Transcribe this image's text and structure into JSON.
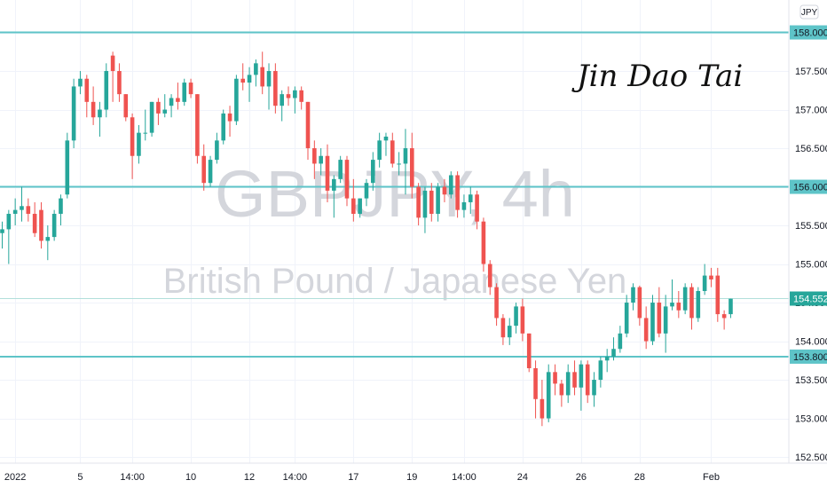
{
  "chart_data": {
    "type": "candlestick",
    "symbol": "GBPJPY, 4h",
    "description": "British Pound / Japanese Yen",
    "currency": "JPY",
    "signature": "Jin Dao Tai",
    "y_ticks": [
      152.5,
      153.0,
      153.5,
      154.0,
      154.5,
      155.0,
      155.5,
      156.0,
      156.5,
      157.0,
      157.5,
      158.0
    ],
    "ylim": [
      152.42,
      158.42
    ],
    "x_labels": [
      {
        "label": "2022",
        "bar": 2
      },
      {
        "label": "5",
        "bar": 12
      },
      {
        "label": "14:00",
        "bar": 20
      },
      {
        "label": "10",
        "bar": 29
      },
      {
        "label": "12",
        "bar": 38
      },
      {
        "label": "14:00",
        "bar": 45
      },
      {
        "label": "17",
        "bar": 54
      },
      {
        "label": "19",
        "bar": 63
      },
      {
        "label": "14:00",
        "bar": 71
      },
      {
        "label": "24",
        "bar": 80
      },
      {
        "label": "26",
        "bar": 89
      },
      {
        "label": "28",
        "bar": 98
      },
      {
        "label": "Feb",
        "bar": 109
      }
    ],
    "levels": [
      {
        "value": 158.0,
        "label": "158.000"
      },
      {
        "value": 156.0,
        "label": "156.000"
      },
      {
        "value": 153.8,
        "label": "153.800"
      }
    ],
    "last_price": {
      "value": 154.552,
      "label": "154.552"
    },
    "colors": {
      "up": "#26a69a",
      "down": "#ef5350",
      "level": "#5ec4c8",
      "last": "#26a69a"
    },
    "candles": [
      [
        155.4,
        155.55,
        155.2,
        155.45
      ],
      [
        155.45,
        155.7,
        155.0,
        155.65
      ],
      [
        155.65,
        155.85,
        155.5,
        155.7
      ],
      [
        155.7,
        156.0,
        155.55,
        155.75
      ],
      [
        155.75,
        155.85,
        155.55,
        155.65
      ],
      [
        155.65,
        155.8,
        155.35,
        155.4
      ],
      [
        155.7,
        155.8,
        155.2,
        155.3
      ],
      [
        155.3,
        155.5,
        155.05,
        155.35
      ],
      [
        155.35,
        155.7,
        155.3,
        155.65
      ],
      [
        155.65,
        155.9,
        155.5,
        155.85
      ],
      [
        155.9,
        156.7,
        155.85,
        156.6
      ],
      [
        156.6,
        157.4,
        156.5,
        157.3
      ],
      [
        157.3,
        157.5,
        157.2,
        157.4
      ],
      [
        157.4,
        157.45,
        156.9,
        157.1
      ],
      [
        157.1,
        157.3,
        156.8,
        156.9
      ],
      [
        156.9,
        157.1,
        156.65,
        157.0
      ],
      [
        157.0,
        157.6,
        156.9,
        157.5
      ],
      [
        157.7,
        157.75,
        157.1,
        157.5
      ],
      [
        157.5,
        157.6,
        157.1,
        157.2
      ],
      [
        157.2,
        157.2,
        156.85,
        156.9
      ],
      [
        156.9,
        156.95,
        156.1,
        156.4
      ],
      [
        156.4,
        156.8,
        156.3,
        156.7
      ],
      [
        156.7,
        157.0,
        156.6,
        156.7
      ],
      [
        156.7,
        157.1,
        156.65,
        157.1
      ],
      [
        157.1,
        157.15,
        156.8,
        156.95
      ],
      [
        156.95,
        157.2,
        156.9,
        157.0
      ],
      [
        157.05,
        157.2,
        156.9,
        157.15
      ],
      [
        157.15,
        157.35,
        157.0,
        157.1
      ],
      [
        157.1,
        157.4,
        157.05,
        157.35
      ],
      [
        157.35,
        157.4,
        157.15,
        157.2
      ],
      [
        157.2,
        157.2,
        156.3,
        156.4
      ],
      [
        156.4,
        156.55,
        155.95,
        156.05
      ],
      [
        156.05,
        156.4,
        156.0,
        156.35
      ],
      [
        156.35,
        156.7,
        156.3,
        156.6
      ],
      [
        156.6,
        157.0,
        156.55,
        156.95
      ],
      [
        156.95,
        157.05,
        156.65,
        156.85
      ],
      [
        156.85,
        157.45,
        156.8,
        157.4
      ],
      [
        157.4,
        157.6,
        157.25,
        157.35
      ],
      [
        157.35,
        157.55,
        157.1,
        157.45
      ],
      [
        157.45,
        157.65,
        157.3,
        157.6
      ],
      [
        157.55,
        157.75,
        157.2,
        157.3
      ],
      [
        157.3,
        157.6,
        157.0,
        157.5
      ],
      [
        157.5,
        157.6,
        156.95,
        157.05
      ],
      [
        157.05,
        157.25,
        156.85,
        157.2
      ],
      [
        157.2,
        157.3,
        157.05,
        157.15
      ],
      [
        157.15,
        157.3,
        156.95,
        157.25
      ],
      [
        157.25,
        157.3,
        157.0,
        157.1
      ],
      [
        157.1,
        157.1,
        156.35,
        156.5
      ],
      [
        156.5,
        156.6,
        156.1,
        156.3
      ],
      [
        156.3,
        156.5,
        156.15,
        156.4
      ],
      [
        156.4,
        156.55,
        155.8,
        155.95
      ],
      [
        155.95,
        156.15,
        155.6,
        156.1
      ],
      [
        156.1,
        156.4,
        156.05,
        156.35
      ],
      [
        156.35,
        156.4,
        155.75,
        155.85
      ],
      [
        155.85,
        156.1,
        155.55,
        155.65
      ],
      [
        155.65,
        155.85,
        155.6,
        155.85
      ],
      [
        155.85,
        156.1,
        155.75,
        156.05
      ],
      [
        156.05,
        156.45,
        155.95,
        156.35
      ],
      [
        156.35,
        156.7,
        156.25,
        156.6
      ],
      [
        156.6,
        156.7,
        156.4,
        156.65
      ],
      [
        156.6,
        156.7,
        156.25,
        156.3
      ],
      [
        156.3,
        156.45,
        156.15,
        156.3
      ],
      [
        156.3,
        156.75,
        155.9,
        156.5
      ],
      [
        156.5,
        156.7,
        155.85,
        156.0
      ],
      [
        156.0,
        156.05,
        155.5,
        155.6
      ],
      [
        155.6,
        156.0,
        155.4,
        155.95
      ],
      [
        155.95,
        156.05,
        155.55,
        155.65
      ],
      [
        155.65,
        156.05,
        155.55,
        156.0
      ],
      [
        156.0,
        156.1,
        155.8,
        155.9
      ],
      [
        155.9,
        156.2,
        155.85,
        156.15
      ],
      [
        156.15,
        156.2,
        155.6,
        155.7
      ],
      [
        155.7,
        155.9,
        155.6,
        155.8
      ],
      [
        155.8,
        156.0,
        155.65,
        155.9
      ],
      [
        155.9,
        155.95,
        155.45,
        155.55
      ],
      [
        155.55,
        155.6,
        154.9,
        155.0
      ],
      [
        155.0,
        155.05,
        154.6,
        154.7
      ],
      [
        154.7,
        154.75,
        154.2,
        154.3
      ],
      [
        154.3,
        154.35,
        153.95,
        154.05
      ],
      [
        154.05,
        154.3,
        153.95,
        154.2
      ],
      [
        154.2,
        154.5,
        154.1,
        154.45
      ],
      [
        154.45,
        154.55,
        154.0,
        154.1
      ],
      [
        154.1,
        154.1,
        153.6,
        153.65
      ],
      [
        153.65,
        153.75,
        153.0,
        153.25
      ],
      [
        153.25,
        153.5,
        152.9,
        153.0
      ],
      [
        153.0,
        153.7,
        152.95,
        153.6
      ],
      [
        153.6,
        153.7,
        153.3,
        153.45
      ],
      [
        153.45,
        153.5,
        153.15,
        153.3
      ],
      [
        153.3,
        153.7,
        153.2,
        153.6
      ],
      [
        153.6,
        153.75,
        153.3,
        153.4
      ],
      [
        153.4,
        153.75,
        153.1,
        153.7
      ],
      [
        153.7,
        153.75,
        153.2,
        153.3
      ],
      [
        153.3,
        153.6,
        153.15,
        153.5
      ],
      [
        153.5,
        153.8,
        153.4,
        153.75
      ],
      [
        153.75,
        153.9,
        153.6,
        153.8
      ],
      [
        153.8,
        154.05,
        153.75,
        153.9
      ],
      [
        153.9,
        154.2,
        153.85,
        154.1
      ],
      [
        154.1,
        154.6,
        154.05,
        154.5
      ],
      [
        154.5,
        154.75,
        154.4,
        154.7
      ],
      [
        154.7,
        154.72,
        154.2,
        154.3
      ],
      [
        154.3,
        154.45,
        153.9,
        154.0
      ],
      [
        154.0,
        154.6,
        153.95,
        154.5
      ],
      [
        154.5,
        154.7,
        154.05,
        154.1
      ],
      [
        154.1,
        154.6,
        153.85,
        154.45
      ],
      [
        154.45,
        154.8,
        154.4,
        154.5
      ],
      [
        154.5,
        154.65,
        154.3,
        154.4
      ],
      [
        154.4,
        154.75,
        154.35,
        154.7
      ],
      [
        154.7,
        154.75,
        154.15,
        154.3
      ],
      [
        154.3,
        154.7,
        154.25,
        154.65
      ],
      [
        154.65,
        155.0,
        154.6,
        154.85
      ],
      [
        154.85,
        154.95,
        154.7,
        154.8
      ],
      [
        154.85,
        154.95,
        154.25,
        154.35
      ],
      [
        154.35,
        154.4,
        154.15,
        154.3
      ],
      [
        154.35,
        154.55,
        154.3,
        154.55
      ]
    ]
  }
}
